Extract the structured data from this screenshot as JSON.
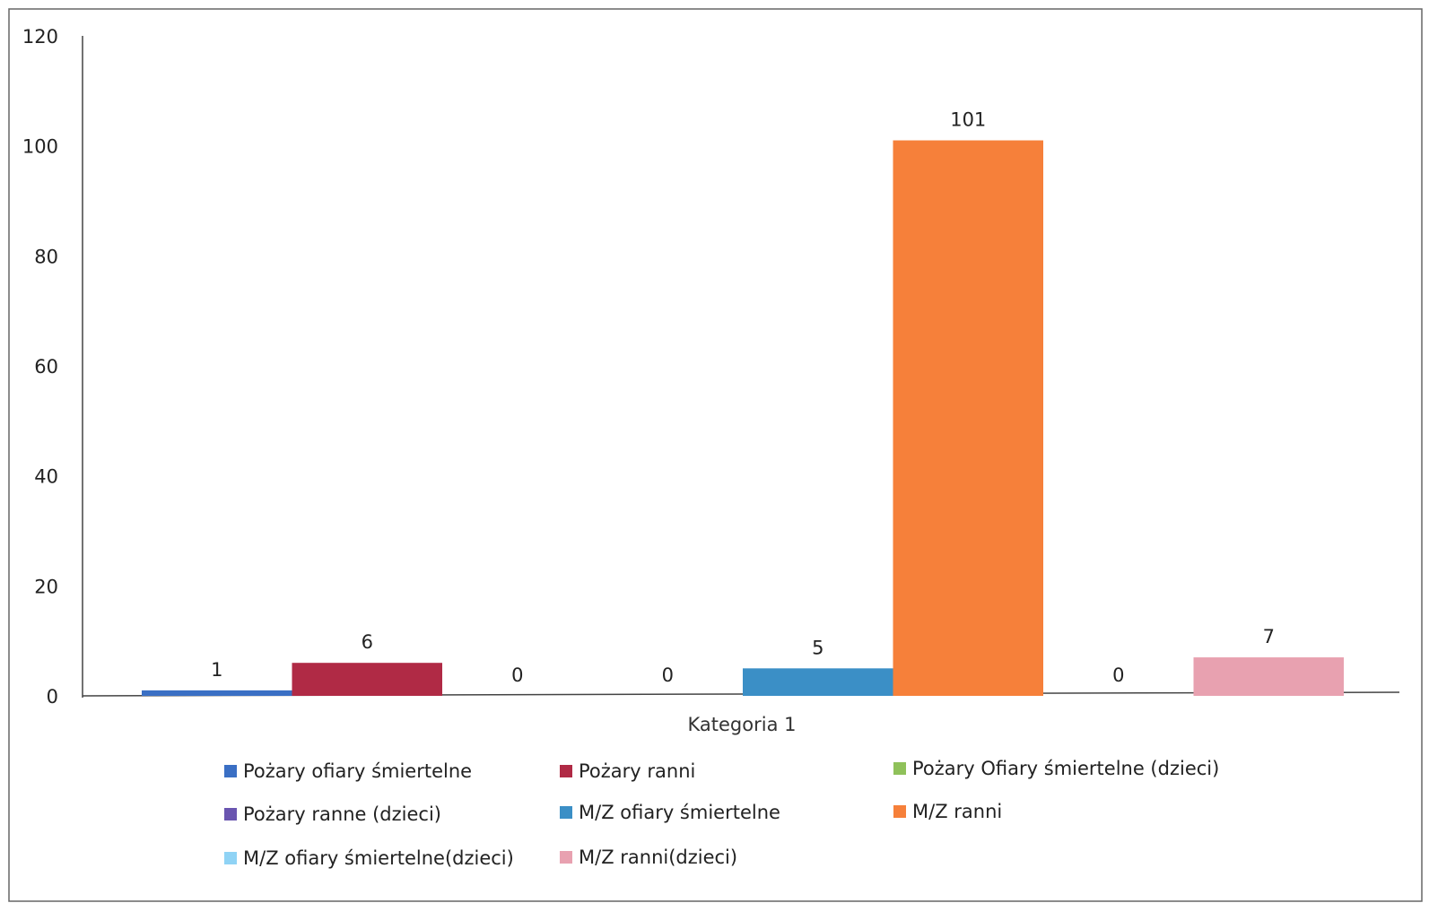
{
  "chart_data": {
    "type": "bar",
    "categories": [
      "Kategoria 1"
    ],
    "series": [
      {
        "name": "Pożary ofiary śmiertelne",
        "values": [
          1
        ],
        "color": "#3a6fc4"
      },
      {
        "name": "Pożary ranni",
        "values": [
          6
        ],
        "color": "#b02a45"
      },
      {
        "name": "Pożary Ofiary śmiertelne (dzieci)",
        "values": [
          0
        ],
        "color": "#8fc15a"
      },
      {
        "name": "Pożary ranne (dzieci)",
        "values": [
          0
        ],
        "color": "#6a55b0"
      },
      {
        "name": "M/Z ofiary śmiertelne",
        "values": [
          5
        ],
        "color": "#3b8fc6"
      },
      {
        "name": "M/Z ranni",
        "values": [
          101
        ],
        "color": "#f6803a"
      },
      {
        "name": "M/Z ofiary śmiertelne(dzieci)",
        "values": [
          0
        ],
        "color": "#8fd3f5"
      },
      {
        "name": "M/Z ranni(dzieci)",
        "values": [
          7
        ],
        "color": "#e8a1b0"
      }
    ],
    "ylim": [
      0,
      120
    ],
    "yticks": [
      0,
      20,
      40,
      60,
      80,
      100,
      120
    ],
    "grid": false,
    "legend_position": "bottom"
  }
}
